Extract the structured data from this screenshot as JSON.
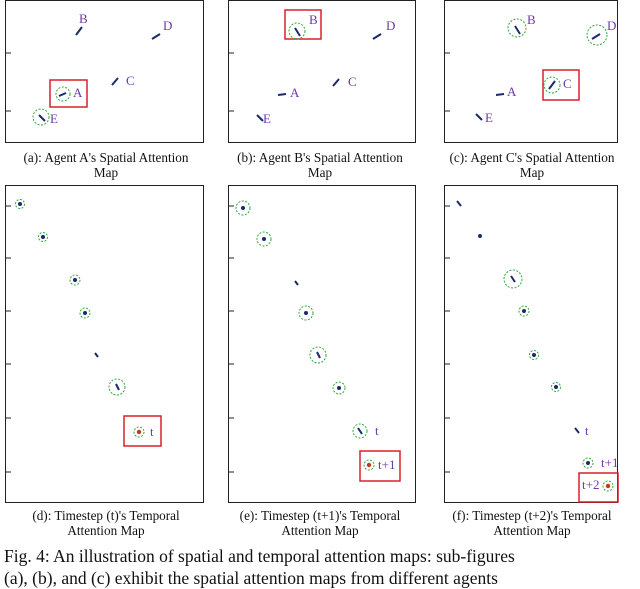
{
  "colors": {
    "label": "#6a3aa8",
    "attention_circle": "#2fa83a",
    "highlight_box": "#d8202a",
    "agent": "#1a2a6a"
  },
  "spatial_panels": [
    {
      "agents": [
        "A",
        "B",
        "C",
        "D",
        "E"
      ],
      "highlighted": "A",
      "caption_line1": "(a): Agent A's Spatial Attention",
      "caption_line2": "Map"
    },
    {
      "agents": [
        "A",
        "B",
        "C",
        "D",
        "E"
      ],
      "highlighted": "B",
      "caption_line1": "(b): Agent B's Spatial Attention",
      "caption_line2": "Map"
    },
    {
      "agents": [
        "A",
        "B",
        "C",
        "D",
        "E"
      ],
      "highlighted": "C",
      "caption_line1": "(c): Agent C's Spatial Attention",
      "caption_line2": "Map"
    }
  ],
  "temporal_panels": [
    {
      "label": "t",
      "caption_line1": "(d): Timestep (t)'s Temporal",
      "caption_line2": "Attention Map"
    },
    {
      "label": "t+1",
      "label_prev": "t",
      "caption_line1": "(e): Timestep (t+1)'s Temporal",
      "caption_line2": "Attention Map"
    },
    {
      "label": "t+2",
      "label_prev": "t+1",
      "caption_line1": "(f): Timestep (t+2)'s Temporal",
      "caption_line2": "Attention Map"
    }
  ],
  "figure_caption": {
    "line1": "Fig. 4: An illustration of spatial and temporal attention maps: sub-figures",
    "line2": "(a), (b), and (c) exhibit the spatial attention maps from different agents"
  }
}
